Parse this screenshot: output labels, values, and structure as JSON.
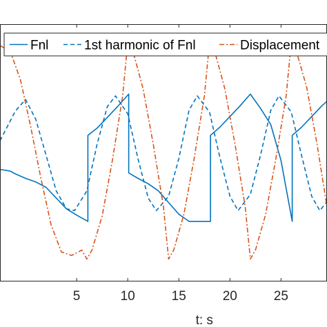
{
  "chart_data": {
    "type": "line",
    "title": "",
    "xlabel": "t: s",
    "ylabel": "",
    "xlim": [
      -2.5,
      29.5
    ],
    "ylim": [
      -1.45,
      1.42
    ],
    "x_ticks": [
      5,
      10,
      15,
      20,
      25
    ],
    "x_tick_labels": [
      "5",
      "10",
      "15",
      "20",
      "25"
    ],
    "grid": false,
    "legend_position": "top",
    "series": [
      {
        "name": "Fnl",
        "color": "#0072BD",
        "style": "solid",
        "x": [
          -2.5,
          -1.5,
          -1.0,
          0.0,
          1.0,
          2.0,
          3.0,
          4.0,
          5.0,
          6.1,
          6.1,
          7.0,
          8.0,
          9.0,
          10.1,
          10.1,
          11.0,
          12.0,
          13.0,
          14.0,
          15.0,
          16.0,
          17.0,
          18.1,
          18.1,
          19.0,
          20.0,
          21.0,
          22.0,
          23.0,
          24.0,
          25.0,
          26.1,
          26.1,
          27.0,
          28.0,
          29.0,
          29.5
        ],
        "y": [
          -0.2,
          -0.22,
          -0.25,
          -0.3,
          -0.34,
          -0.4,
          -0.52,
          -0.64,
          -0.71,
          -0.78,
          0.18,
          0.26,
          0.38,
          0.5,
          0.64,
          -0.24,
          -0.3,
          -0.36,
          -0.44,
          -0.57,
          -0.7,
          -0.78,
          -0.78,
          -0.78,
          0.18,
          0.27,
          0.39,
          0.51,
          0.64,
          0.48,
          0.3,
          -0.1,
          -0.78,
          0.18,
          0.27,
          0.39,
          0.51,
          0.56
        ]
      },
      {
        "name": "1st harmonic of Fnl",
        "color": "#0072BD",
        "style": "dashed",
        "x": [
          -2.5,
          -1.0,
          0.0,
          1.0,
          2.0,
          3.0,
          4.0,
          4.8,
          6.0,
          7.0,
          8.0,
          8.8,
          10.0,
          11.0,
          12.0,
          12.8,
          14.0,
          15.0,
          16.0,
          16.8,
          18.0,
          19.0,
          20.0,
          20.8,
          22.0,
          23.0,
          24.0,
          24.8,
          26.0,
          27.0,
          28.0,
          28.8,
          29.5
        ],
        "y": [
          0.12,
          0.45,
          0.58,
          0.36,
          -0.04,
          -0.44,
          -0.64,
          -0.66,
          -0.44,
          0.08,
          0.5,
          0.62,
          0.42,
          -0.08,
          -0.52,
          -0.66,
          -0.5,
          -0.08,
          0.46,
          0.62,
          0.44,
          -0.06,
          -0.5,
          -0.66,
          -0.48,
          -0.04,
          0.46,
          0.62,
          0.44,
          -0.04,
          -0.5,
          -0.66,
          -0.56
        ]
      },
      {
        "name": "Displacement",
        "color": "#D95319",
        "style": "dashdot",
        "x": [
          -2.5,
          -1.5,
          -0.5,
          0.5,
          1.5,
          2.5,
          3.5,
          4.5,
          5.5,
          6.0,
          6.5,
          7.5,
          8.5,
          9.5,
          10.0,
          10.5,
          11.5,
          12.5,
          13.5,
          14.0,
          14.5,
          15.5,
          16.5,
          17.5,
          18.0,
          18.5,
          19.5,
          20.5,
          21.5,
          22.0,
          22.5,
          23.5,
          24.5,
          25.5,
          26.0,
          26.5,
          27.5,
          28.5,
          29.5
        ],
        "y": [
          1.18,
          1.12,
          0.8,
          0.28,
          -0.3,
          -0.82,
          -1.12,
          -1.16,
          -1.1,
          -1.2,
          -1.1,
          -0.72,
          -0.1,
          0.62,
          1.22,
          1.12,
          0.7,
          0.08,
          -0.62,
          -1.2,
          -1.1,
          -0.7,
          -0.08,
          0.62,
          1.22,
          1.12,
          0.7,
          0.08,
          -0.62,
          -1.2,
          -1.1,
          -0.7,
          -0.08,
          0.62,
          1.22,
          1.12,
          0.72,
          0.1,
          -0.62
        ]
      }
    ],
    "legend": {
      "entries": [
        "Fnl",
        "1st harmonic of Fnl",
        "Displacement"
      ]
    }
  }
}
